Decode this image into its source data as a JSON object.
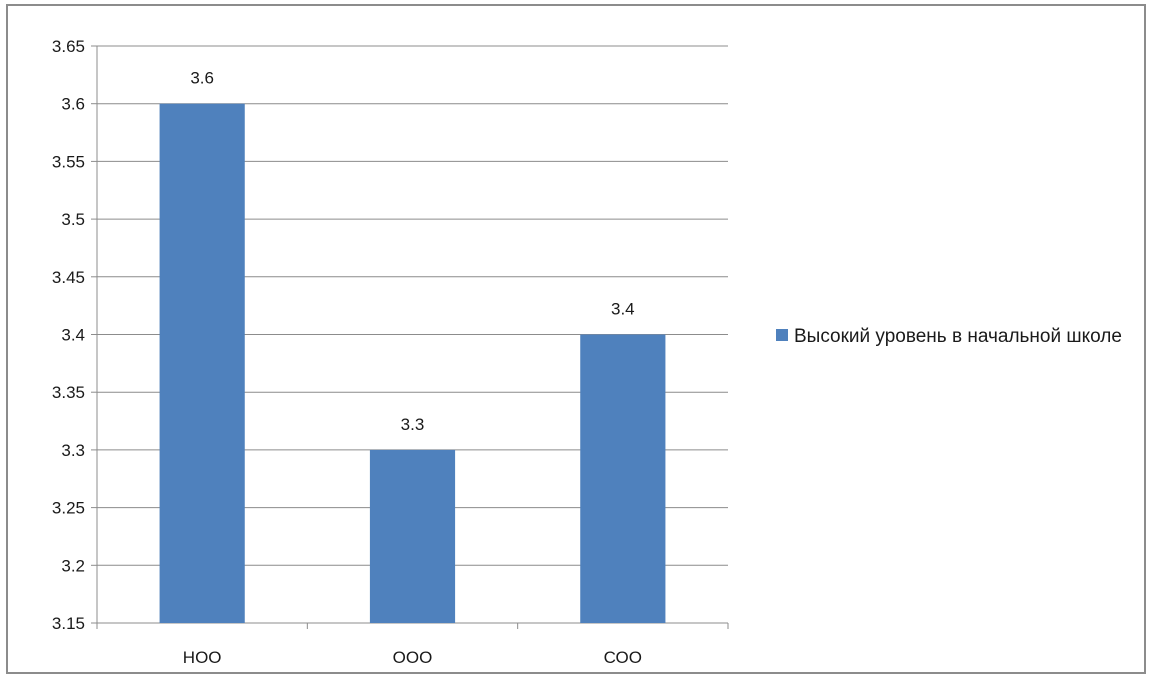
{
  "chart_data": {
    "type": "bar",
    "categories": [
      "НОО",
      "ООО",
      "СОО"
    ],
    "series": [
      {
        "name": "Высокий уровень в начальной школе",
        "values": [
          3.6,
          3.3,
          3.4
        ]
      }
    ],
    "data_labels": [
      "3.6",
      "3.3",
      "3.4"
    ],
    "y_ticks": [
      "3.15",
      "3.2",
      "3.25",
      "3.3",
      "3.35",
      "3.4",
      "3.45",
      "3.5",
      "3.55",
      "3.6",
      "3.65"
    ],
    "ylim": [
      3.15,
      3.65
    ],
    "grid": true,
    "legend_placement": "right",
    "bar_color": "#4f81bd",
    "grid_color": "#8c8c8c"
  }
}
